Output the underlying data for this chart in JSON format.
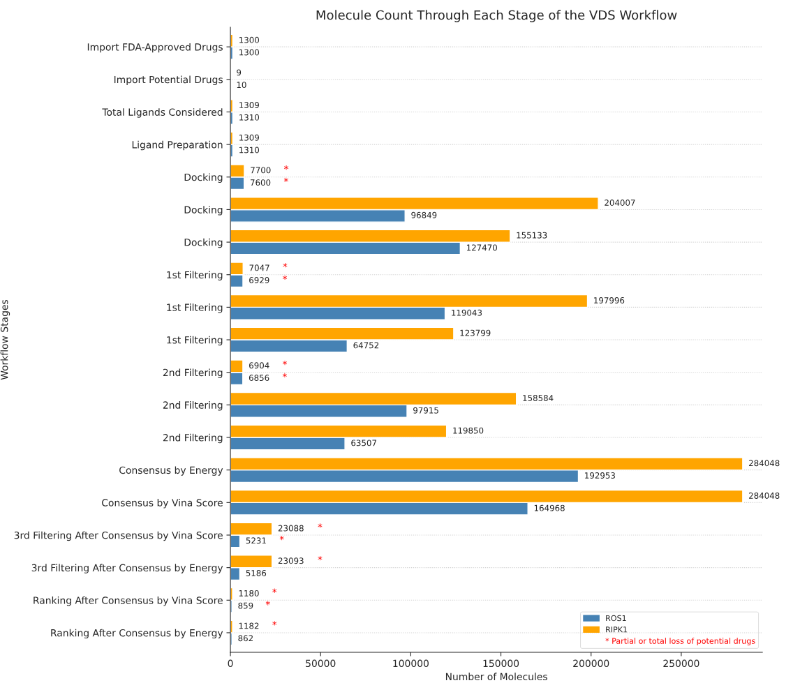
{
  "chart_data": {
    "type": "bar",
    "orientation": "horizontal",
    "title": "Molecule Count Through Each Stage of the VDS Workflow",
    "xlabel": "Number of Molecules",
    "ylabel": "Workflow Stages",
    "categories": [
      "Import FDA-Approved Drugs",
      "Import Potential Drugs",
      "Total Ligands Considered",
      "Ligand Preparation",
      "Docking",
      "Docking",
      "Docking",
      "1st Filtering",
      "1st Filtering",
      "1st Filtering",
      "2nd Filtering",
      "2nd Filtering",
      "2nd Filtering",
      "Consensus by Energy",
      "Consensus by Vina Score",
      "3rd Filtering After Consensus by Vina Score",
      "3rd Filtering After Consensus by Energy",
      "Ranking After Consensus by Vina Score",
      "Ranking After Consensus by Energy"
    ],
    "series": [
      {
        "name": "ROS1",
        "color": "#4682b4",
        "values": [
          1300,
          10,
          1310,
          1310,
          7600,
          96849,
          127470,
          6929,
          119043,
          64752,
          6856,
          97915,
          63507,
          192953,
          164968,
          5231,
          5186,
          859,
          862
        ],
        "value_labels": [
          "1300",
          "10",
          "1310",
          "1310",
          "7600 *",
          "96849",
          "127470",
          "6929 *",
          "119043",
          "64752",
          "6856 *",
          "97915",
          "63507",
          "192953",
          "164968",
          "5231 *",
          "5186",
          "859 *",
          "862"
        ]
      },
      {
        "name": "RIPK1",
        "color": "#ffa500",
        "values": [
          1300,
          9,
          1309,
          1309,
          7700,
          204007,
          155133,
          7047,
          197996,
          123799,
          6904,
          158584,
          119850,
          284048,
          284048,
          23088,
          23093,
          1180,
          1182
        ],
        "value_labels": [
          "1300",
          "9",
          "1309",
          "1309",
          "7700 *",
          "204007",
          "155133",
          "7047 *",
          "197996",
          "123799",
          "6904 *",
          "158584",
          "119850",
          "284048",
          "284048",
          "23088 *",
          "23093 *",
          "1180 *",
          "1182 *"
        ]
      }
    ],
    "xlim": [
      0,
      295000
    ],
    "xticks": [
      0,
      50000,
      100000,
      150000,
      200000,
      250000
    ],
    "grid": "y",
    "legend": "bottom right",
    "annotations": [
      "* Partial or total loss of potential drugs"
    ]
  }
}
